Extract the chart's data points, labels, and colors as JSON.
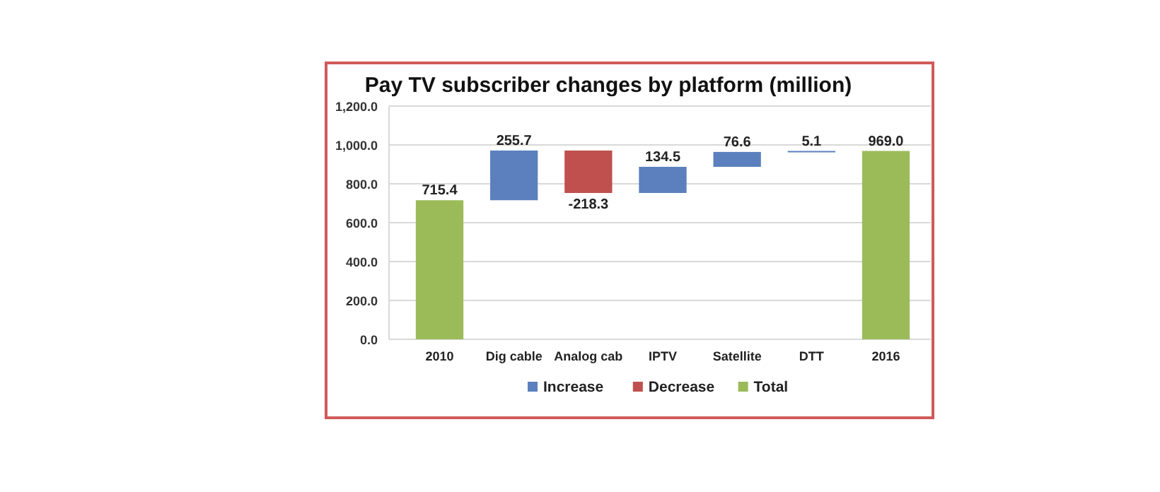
{
  "chart_data": {
    "type": "bar",
    "title": "Pay TV subscriber changes by platform (million)",
    "categories": [
      "2010",
      "Dig cable",
      "Analog cab",
      "IPTV",
      "Satellite",
      "DTT",
      "2016"
    ],
    "series": [
      {
        "name": "Increase",
        "color": "#5b80bd",
        "base": [
          null,
          715.4,
          null,
          752.8,
          887.3,
          963.9,
          null
        ],
        "values": [
          null,
          255.7,
          null,
          134.5,
          76.6,
          5.1,
          null
        ],
        "value_labels": [
          null,
          "255.7",
          null,
          "134.5",
          "76.6",
          "5.1",
          null
        ]
      },
      {
        "name": "Decrease",
        "color": "#c0504d",
        "base": [
          null,
          null,
          971.1,
          null,
          null,
          null,
          null
        ],
        "values": [
          null,
          null,
          -218.3,
          null,
          null,
          null,
          null
        ],
        "value_labels": [
          null,
          null,
          "-218.3",
          null,
          null,
          null,
          null
        ]
      },
      {
        "name": "Total",
        "color": "#9bbb59",
        "base": [
          0,
          null,
          null,
          null,
          null,
          null,
          0
        ],
        "values": [
          715.4,
          null,
          null,
          null,
          null,
          null,
          969.0
        ],
        "value_labels": [
          "715.4",
          null,
          null,
          null,
          null,
          null,
          "969.0"
        ]
      }
    ],
    "ylim": [
      0,
      1200
    ],
    "yticks": [
      {
        "value": 0,
        "label": "0.0"
      },
      {
        "value": 200,
        "label": "200.0"
      },
      {
        "value": 400,
        "label": "400.0"
      },
      {
        "value": 600,
        "label": "600.0"
      },
      {
        "value": 800,
        "label": "800.0"
      },
      {
        "value": 1000,
        "label": "1,000.0"
      },
      {
        "value": 1200,
        "label": "1,200.0"
      }
    ],
    "grid": "y",
    "legend": "bottom"
  }
}
